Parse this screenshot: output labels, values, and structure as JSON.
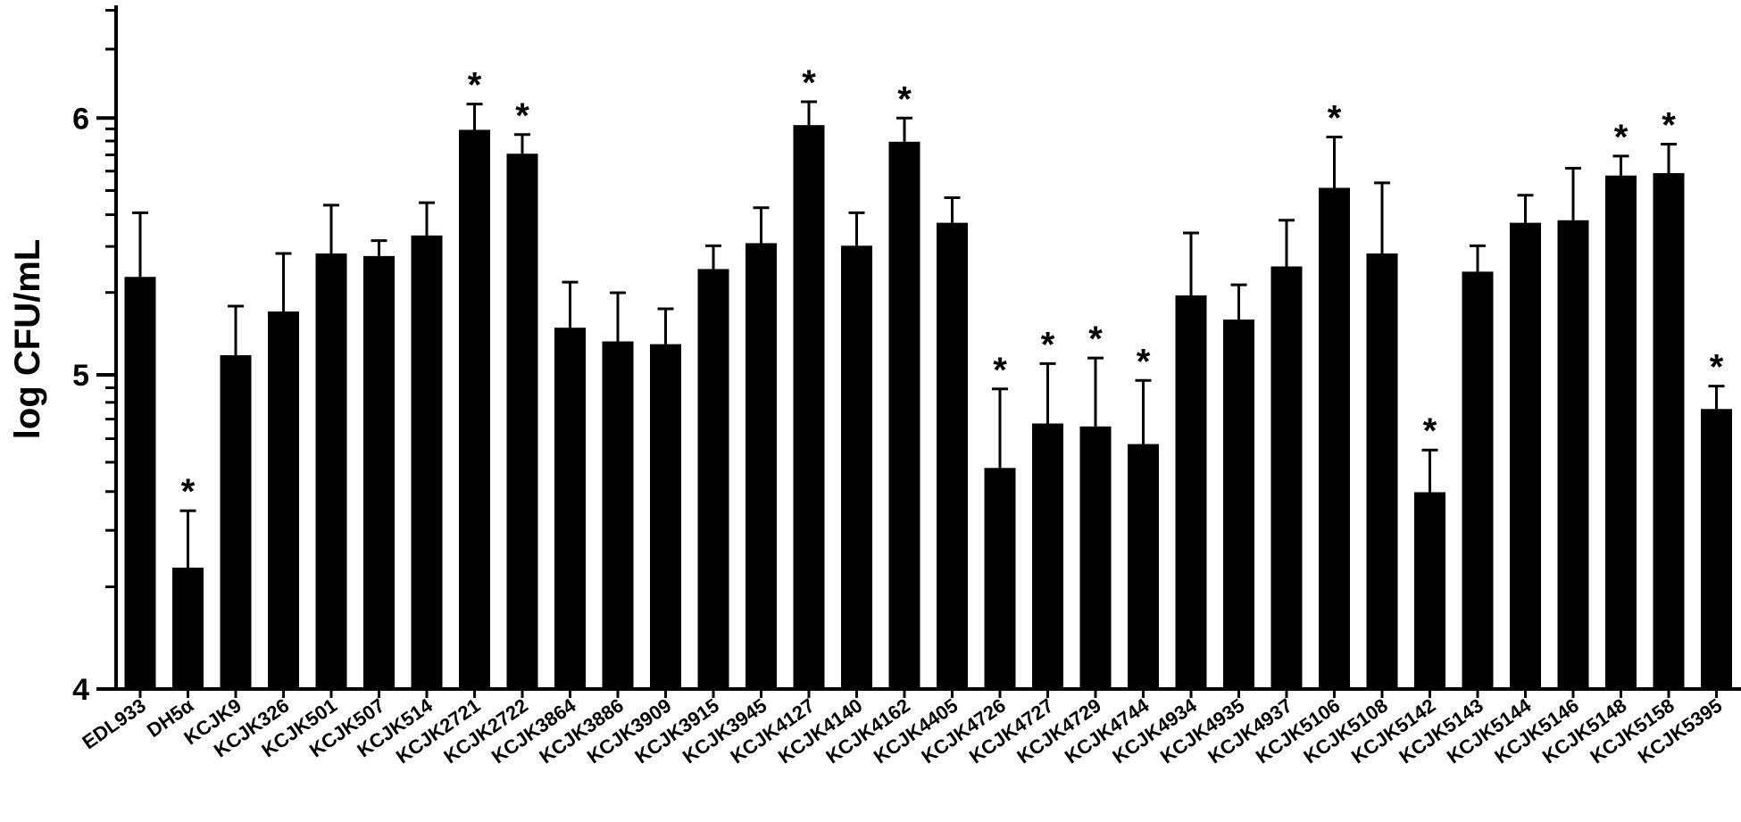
{
  "chart_data": {
    "type": "bar",
    "ylabel": "log CFU/mL",
    "xlabel": "",
    "title": "",
    "yscale": "log",
    "ylim": [
      4,
      6.5
    ],
    "yticks": [
      4,
      5,
      6
    ],
    "ytick_labels": [
      "4",
      "5",
      "6"
    ],
    "categories": [
      "EDL933",
      "DH5α",
      "KCJK9",
      "KCJK326",
      "KCJK501",
      "KCJK507",
      "KCJK514",
      "KCJK2721",
      "KCJK2722",
      "KCJK3864",
      "KCJK3886",
      "KCJK3909",
      "KCJK3915",
      "KCJK3945",
      "KCJK4127",
      "KCJK4140",
      "KCJK4162",
      "KCJK4405",
      "KCJK4726",
      "KCJK4727",
      "KCJK4729",
      "KCJK4744",
      "KCJK4934",
      "KCJK4935",
      "KCJK4937",
      "KCJK5106",
      "KCJK5108",
      "KCJK5142",
      "KCJK5143",
      "KCJK5144",
      "KCJK5146",
      "KCJK5148",
      "KCJK5158",
      "KCJK5395"
    ],
    "values": [
      5.36,
      4.36,
      5.07,
      5.23,
      5.45,
      5.44,
      5.52,
      5.95,
      5.85,
      5.17,
      5.12,
      5.11,
      5.39,
      5.49,
      5.97,
      5.48,
      5.9,
      5.57,
      4.68,
      4.83,
      4.82,
      4.76,
      5.29,
      5.2,
      5.4,
      5.71,
      5.45,
      4.6,
      5.38,
      5.57,
      5.58,
      5.76,
      5.77,
      4.88
    ],
    "error_upper": [
      5.61,
      4.54,
      5.25,
      5.45,
      5.64,
      5.5,
      5.65,
      6.06,
      5.93,
      5.34,
      5.3,
      5.24,
      5.48,
      5.63,
      6.07,
      5.61,
      6.0,
      5.67,
      4.95,
      5.04,
      5.06,
      4.98,
      5.53,
      5.33,
      5.58,
      5.92,
      5.73,
      4.74,
      5.48,
      5.68,
      5.79,
      5.84,
      5.89,
      4.96
    ],
    "significant": [
      false,
      true,
      false,
      false,
      false,
      false,
      false,
      true,
      true,
      false,
      false,
      false,
      false,
      false,
      true,
      false,
      true,
      false,
      true,
      true,
      true,
      true,
      false,
      false,
      false,
      true,
      false,
      true,
      false,
      false,
      false,
      true,
      true,
      true
    ],
    "significance_marker": "*",
    "bar_color": "#000000",
    "grid": false,
    "legend": "none"
  }
}
